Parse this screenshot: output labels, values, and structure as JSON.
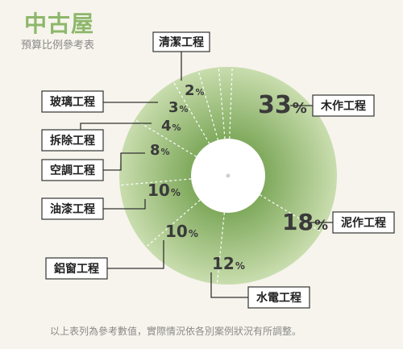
{
  "header": {
    "title": "中古屋",
    "subtitle": "預算比例參考表"
  },
  "note": "以上表列為參考數值，實際情況依各別案例狀況有所調整。",
  "colors": {
    "ring_outer": "#c2d8a6",
    "ring_inner": "#7da85a",
    "hole": "#ffffff",
    "title": "#8db76a"
  },
  "chart_data": {
    "type": "pie",
    "title": "中古屋",
    "subtitle": "預算比例參考表",
    "unit": "%",
    "slices": [
      {
        "label": "清潔工程",
        "value": 2
      },
      {
        "label": "木作工程",
        "value": 33
      },
      {
        "label": "泥作工程",
        "value": 18
      },
      {
        "label": "水電工程",
        "value": 12
      },
      {
        "label": "鋁窗工程",
        "value": 10
      },
      {
        "label": "油漆工程",
        "value": 10
      },
      {
        "label": "空調工程",
        "value": 8
      },
      {
        "label": "拆除工程",
        "value": 4
      },
      {
        "label": "玻璃工程",
        "value": 3
      }
    ]
  }
}
